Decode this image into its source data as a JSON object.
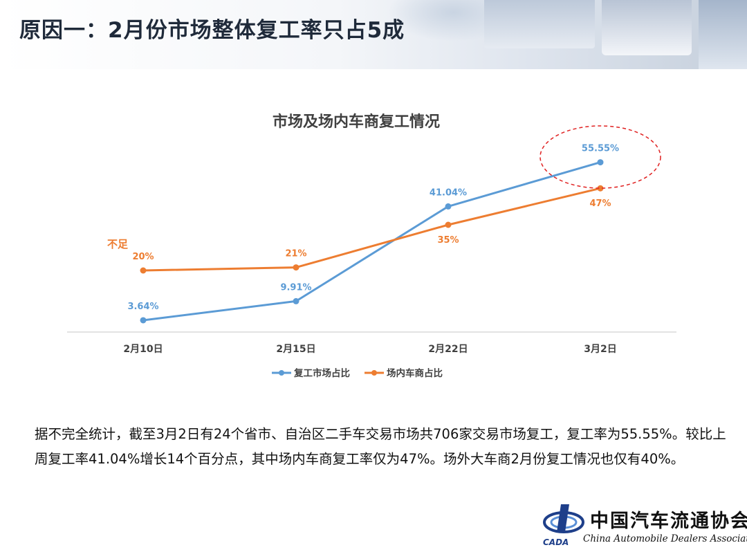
{
  "slide": {
    "title": "原因一：2月份市场整体复工率只占5成",
    "body_text": "据不完全统计，截至3月2日有24个省市、自治区二手车交易市场共706家交易市场复工，复工率为55.55%。较比上周复工率41.04%增长14个百分点，其中场内车商复工率仅为47%。场外大车商2月份复工情况也仅有40%。"
  },
  "chart_data": {
    "type": "line",
    "title": "市场及场内车商复工情况",
    "categories": [
      "2月10日",
      "2月15日",
      "2月22日",
      "3月2日"
    ],
    "series": [
      {
        "name": "复工市场占比",
        "color": "#5b9bd5",
        "values": [
          3.64,
          9.91,
          41.04,
          55.55
        ],
        "labels": [
          "3.64%",
          "9.91%",
          "41.04%",
          "55.55%"
        ]
      },
      {
        "name": "场内车商占比",
        "color": "#ed7d31",
        "values": [
          20,
          21,
          35,
          47
        ],
        "labels": [
          "20%",
          "21%",
          "35%",
          "47%"
        ]
      }
    ],
    "annotations": [
      "不足"
    ],
    "highlight_color": "#e02020",
    "legend": "bottom",
    "grid": false
  },
  "logo": {
    "name_cn": "中国汽车流通协会",
    "name_en": "China Automobile Dealers Association",
    "abbr": "CADA"
  }
}
